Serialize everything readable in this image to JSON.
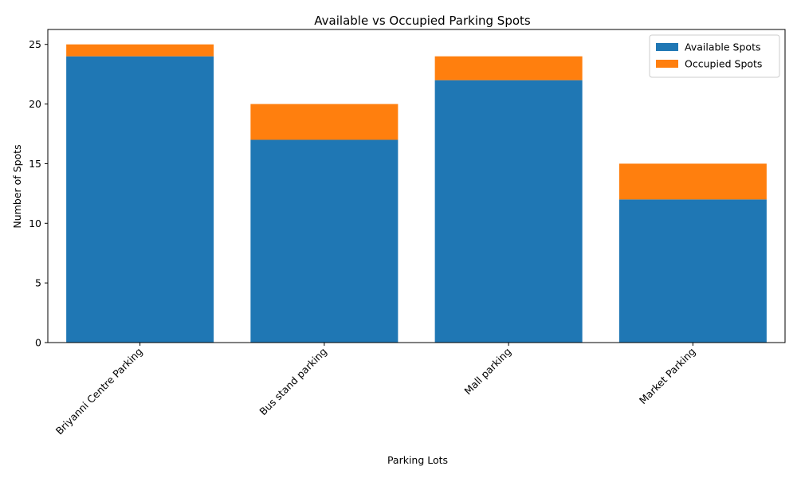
{
  "chart_data": {
    "type": "bar",
    "stacked": true,
    "title": "Available vs Occupied Parking Spots",
    "xlabel": "Parking Lots",
    "ylabel": "Number of Spots",
    "categories": [
      "Briyanni Centre Parking",
      "Bus stand parking",
      "Mall parking",
      "Market Parking"
    ],
    "series": [
      {
        "name": "Available Spots",
        "values": [
          24,
          17,
          22,
          12
        ],
        "color": "#1f77b4"
      },
      {
        "name": "Occupied Spots",
        "values": [
          1,
          3,
          2,
          3
        ],
        "color": "#ff7f0e"
      }
    ],
    "ylim": [
      0,
      26.25
    ],
    "yticks": [
      0,
      5,
      10,
      15,
      20,
      25
    ],
    "grid": false,
    "legend_position": "top-right"
  }
}
